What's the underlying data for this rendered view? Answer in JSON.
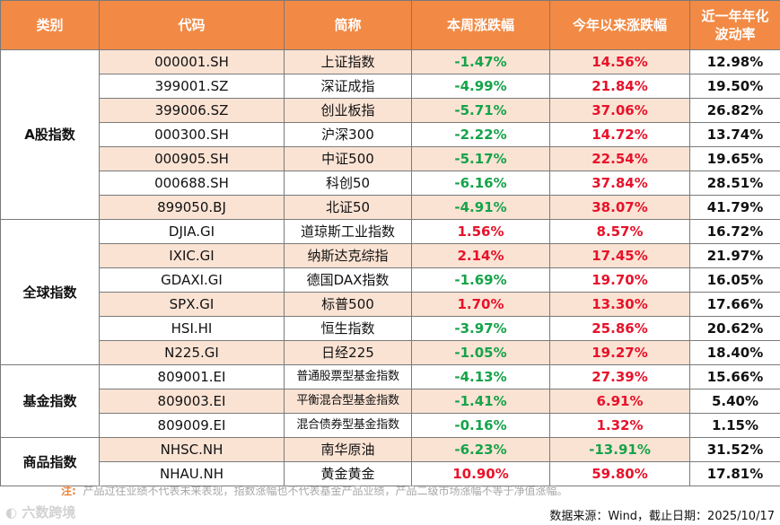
{
  "headers": [
    "类别",
    "代码",
    "简称",
    "本周涨跌幅",
    "今年以来涨跌幅",
    "近一年年化波动率"
  ],
  "groups": [
    {
      "category": "A股指数",
      "rows": [
        {
          "code": "000001.SH",
          "name": "上证指数",
          "week": "-1.47%",
          "ytd": "14.56%",
          "vol": "12.98%"
        },
        {
          "code": "399001.SZ",
          "name": "深证成指",
          "week": "-4.99%",
          "ytd": "21.84%",
          "vol": "19.50%"
        },
        {
          "code": "399006.SZ",
          "name": "创业板指",
          "week": "-5.71%",
          "ytd": "37.06%",
          "vol": "26.82%"
        },
        {
          "code": "000300.SH",
          "name": "沪深300",
          "week": "-2.22%",
          "ytd": "14.72%",
          "vol": "13.74%"
        },
        {
          "code": "000905.SH",
          "name": "中证500",
          "week": "-5.17%",
          "ytd": "22.54%",
          "vol": "19.65%"
        },
        {
          "code": "000688.SH",
          "name": "科创50",
          "week": "-6.16%",
          "ytd": "37.84%",
          "vol": "28.51%"
        },
        {
          "code": "899050.BJ",
          "name": "北证50",
          "week": "-4.91%",
          "ytd": "38.07%",
          "vol": "41.79%"
        }
      ]
    },
    {
      "category": "全球指数",
      "rows": [
        {
          "code": "DJIA.GI",
          "name": "道琼斯工业指数",
          "week": "1.56%",
          "ytd": "8.57%",
          "vol": "16.72%"
        },
        {
          "code": "IXIC.GI",
          "name": "纳斯达克综指",
          "week": "2.14%",
          "ytd": "17.45%",
          "vol": "21.97%"
        },
        {
          "code": "GDAXI.GI",
          "name": "德国DAX指数",
          "week": "-1.69%",
          "ytd": "19.70%",
          "vol": "16.05%"
        },
        {
          "code": "SPX.GI",
          "name": "标普500",
          "week": "1.70%",
          "ytd": "13.30%",
          "vol": "17.66%"
        },
        {
          "code": "HSI.HI",
          "name": "恒生指数",
          "week": "-3.97%",
          "ytd": "25.86%",
          "vol": "20.62%"
        },
        {
          "code": "N225.GI",
          "name": "日经225",
          "week": "-1.05%",
          "ytd": "19.27%",
          "vol": "18.40%"
        }
      ]
    },
    {
      "category": "基金指数",
      "rows": [
        {
          "code": "809001.EI",
          "name": "普通股票型基金指数",
          "week": "-4.13%",
          "ytd": "27.39%",
          "vol": "15.66%"
        },
        {
          "code": "809003.EI",
          "name": "平衡混合型基金指数",
          "week": "-1.41%",
          "ytd": "6.91%",
          "vol": "5.40%"
        },
        {
          "code": "809009.EI",
          "name": "混合债券型基金指数",
          "week": "-0.16%",
          "ytd": "1.32%",
          "vol": "1.15%"
        }
      ]
    },
    {
      "category": "商品指数",
      "rows": [
        {
          "code": "NHSC.NH",
          "name": "南华原油",
          "week": "-6.23%",
          "ytd": "-13.91%",
          "vol": "31.52%"
        },
        {
          "code": "NHAU.NH",
          "name": "黄金黄金",
          "week": "10.90%",
          "ytd": "59.80%",
          "vol": "17.81%"
        }
      ]
    }
  ],
  "note_label": "注:",
  "note_text": "产品过往业绩不代表未来表现，指数涨幅也不代表基金产品业绩，产品二级市场涨幅不等于净值涨幅。",
  "source": "数据来源：Wind，截止日期：2025/10/17",
  "watermark": "六数跨境",
  "colors": {
    "header_bg": "#f28a45",
    "stripe": "#fbe3d4",
    "positive": "#e8122a",
    "negative": "#16a34a"
  }
}
